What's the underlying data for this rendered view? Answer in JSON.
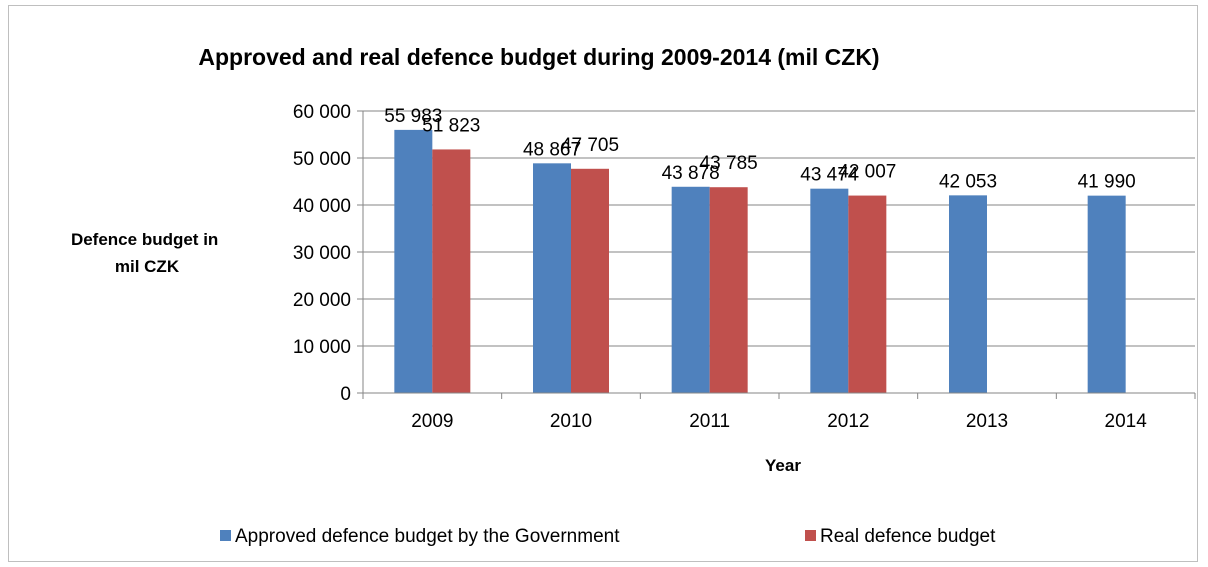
{
  "chart_data": {
    "type": "bar",
    "title": "Approved and real defence budget during 2009-2014 (mil CZK)",
    "ylabel": "Defence budget in mil CZK",
    "ylabel_lines": [
      "Defence budget in",
      "mil CZK"
    ],
    "xlabel": "Year",
    "categories": [
      "2009",
      "2010",
      "2011",
      "2012",
      "2013",
      "2014"
    ],
    "ylim": [
      0,
      60000
    ],
    "yticks": [
      0,
      10000,
      20000,
      30000,
      40000,
      50000,
      60000
    ],
    "ytick_labels": [
      "0",
      "10 000",
      "20 000",
      "30 000",
      "40 000",
      "50 000",
      "60 000"
    ],
    "grid": true,
    "legend_position": "bottom",
    "series": [
      {
        "name": "Approved defence budget by the Government",
        "color": "#4f81bd",
        "values": [
          55983,
          48867,
          43878,
          43474,
          42053,
          41990
        ],
        "labels": [
          "55 983",
          "48 867",
          "43 878",
          "43 474",
          "42 053",
          "41 990"
        ]
      },
      {
        "name": "Real defence budget",
        "color": "#c0504d",
        "values": [
          51823,
          47705,
          43785,
          42007,
          null,
          null
        ],
        "labels": [
          "51 823",
          "47 705",
          "43 785",
          "42 007",
          null,
          null
        ]
      }
    ]
  }
}
